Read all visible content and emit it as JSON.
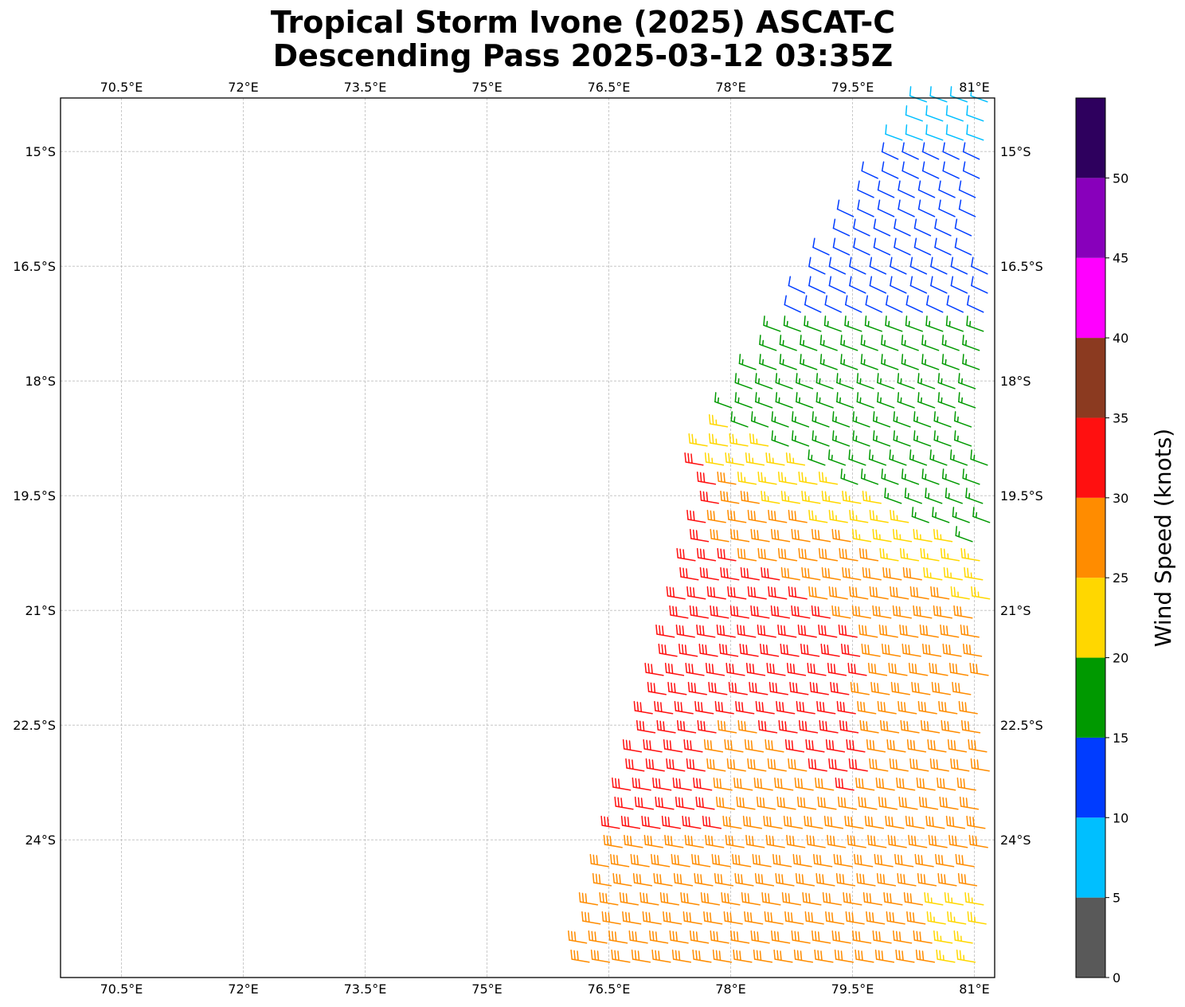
{
  "title": {
    "line1": "Tropical Storm Ivone (2025) ASCAT-C",
    "line2": "Descending Pass 2025-03-12 03:35Z"
  },
  "map": {
    "lon_range": [
      69.75,
      81.25
    ],
    "lat_range": [
      -25.8,
      -14.3
    ],
    "lon_ticks": [
      {
        "value": 70.5,
        "label": "70.5°E"
      },
      {
        "value": 72.0,
        "label": "72°E"
      },
      {
        "value": 73.5,
        "label": "73.5°E"
      },
      {
        "value": 75.0,
        "label": "75°E"
      },
      {
        "value": 76.5,
        "label": "76.5°E"
      },
      {
        "value": 78.0,
        "label": "78°E"
      },
      {
        "value": 79.5,
        "label": "79.5°E"
      },
      {
        "value": 81.0,
        "label": "81°E"
      }
    ],
    "lat_ticks": [
      {
        "value": -15.0,
        "label": "15°S"
      },
      {
        "value": -16.5,
        "label": "16.5°S"
      },
      {
        "value": -18.0,
        "label": "18°S"
      },
      {
        "value": -19.5,
        "label": "19.5°S"
      },
      {
        "value": -21.0,
        "label": "21°S"
      },
      {
        "value": -22.5,
        "label": "22.5°S"
      },
      {
        "value": -24.0,
        "label": "24°S"
      }
    ],
    "gridlines": true,
    "grid_style": "dashed light gray",
    "swath": {
      "description_visible": false,
      "west_edge": [
        [
          -19.2,
          77.5
        ],
        [
          -20.9,
          77.4
        ],
        [
          -21.0,
          77.4
        ],
        [
          -25.8,
          76.1
        ]
      ],
      "east_edge_lon": 81.25
    },
    "barb_style": "wind barbs (knots), flags point toward -y",
    "wind_regions": [
      {
        "region": "north",
        "speed_knots": 8,
        "direction": "light winds"
      },
      {
        "region": "upper",
        "speed_knots": 12,
        "direction": "east-southeast"
      },
      {
        "region": "middle",
        "speed_knots": 17,
        "direction": "southeast"
      },
      {
        "region": "transition",
        "speed_knots": 23,
        "direction": "southeast"
      },
      {
        "region": "south",
        "speed_knots": 28,
        "direction": "southeast"
      },
      {
        "region": "core band",
        "speed_knots": 32,
        "direction": "southeast"
      }
    ]
  },
  "colorbar": {
    "label": "Wind Speed (knots)",
    "bins": [
      0,
      5,
      10,
      15,
      20,
      25,
      30,
      35,
      40,
      45,
      50,
      55
    ],
    "tick_labels": [
      "0",
      "5",
      "10",
      "15",
      "20",
      "25",
      "30",
      "35",
      "40",
      "45",
      "50"
    ],
    "colors": [
      "#595959",
      "#00bfff",
      "#003cff",
      "#009900",
      "#ffd700",
      "#ff8c00",
      "#ff1010",
      "#8b3a20",
      "#ff00ff",
      "#8800bb",
      "#2e005e"
    ]
  }
}
